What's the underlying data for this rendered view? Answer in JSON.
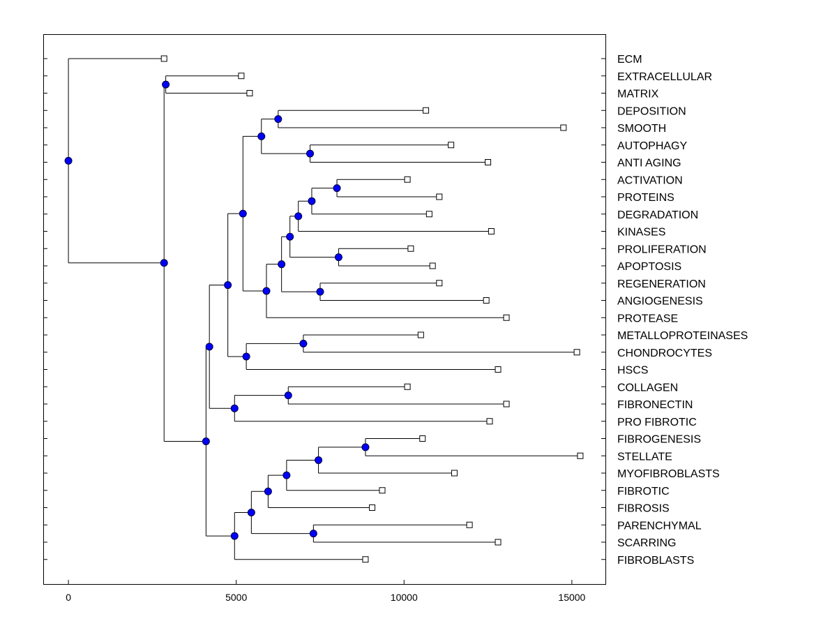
{
  "chart_data": {
    "type": "dendrogram",
    "title": "",
    "xlabel": "",
    "ylabel": "",
    "xlim": [
      -750,
      16000
    ],
    "xticks": [
      0,
      5000,
      10000,
      15000
    ],
    "tick_labels": [
      "0",
      "5000",
      "10000",
      "15000"
    ],
    "colors": {
      "node": "#0000ff",
      "node_stroke": "#000033",
      "line": "#000000",
      "leaf": "#ffffff"
    },
    "leaves": [
      {
        "label": "ECM",
        "x": 2850
      },
      {
        "label": "EXTRACELLULAR",
        "x": 5150
      },
      {
        "label": "MATRIX",
        "x": 5400
      },
      {
        "label": "DEPOSITION",
        "x": 10650
      },
      {
        "label": "SMOOTH",
        "x": 14750
      },
      {
        "label": "AUTOPHAGY",
        "x": 11400
      },
      {
        "label": "ANTI AGING",
        "x": 12500
      },
      {
        "label": "ACTIVATION",
        "x": 10100
      },
      {
        "label": "PROTEINS",
        "x": 11050
      },
      {
        "label": "DEGRADATION",
        "x": 10750
      },
      {
        "label": "KINASES",
        "x": 12600
      },
      {
        "label": "PROLIFERATION",
        "x": 10200
      },
      {
        "label": "APOPTOSIS",
        "x": 10850
      },
      {
        "label": "REGENERATION",
        "x": 11050
      },
      {
        "label": "ANGIOGENESIS",
        "x": 12450
      },
      {
        "label": "PROTEASE",
        "x": 13050
      },
      {
        "label": "METALLOPROTEINASES",
        "x": 10500
      },
      {
        "label": "CHONDROCYTES",
        "x": 15150
      },
      {
        "label": "HSCS",
        "x": 12800
      },
      {
        "label": "COLLAGEN",
        "x": 10100
      },
      {
        "label": "FIBRONECTIN",
        "x": 13050
      },
      {
        "label": "PRO FIBROTIC",
        "x": 12550
      },
      {
        "label": "FIBROGENESIS",
        "x": 10550
      },
      {
        "label": "STELLATE",
        "x": 15250
      },
      {
        "label": "MYOFIBROBLASTS",
        "x": 11500
      },
      {
        "label": "FIBROTIC",
        "x": 9350
      },
      {
        "label": "FIBROSIS",
        "x": 9050
      },
      {
        "label": "PARENCHYMAL",
        "x": 11950
      },
      {
        "label": "SCARRING",
        "x": 12800
      },
      {
        "label": "FIBROBLASTS",
        "x": 8850
      }
    ],
    "merges": [
      {
        "id": "n1",
        "x": 2900,
        "children": [
          1,
          2
        ]
      },
      {
        "id": "n2",
        "x": 6250,
        "children": [
          3,
          4
        ]
      },
      {
        "id": "n3",
        "x": 7200,
        "children": [
          5,
          6
        ]
      },
      {
        "id": "n4",
        "x": 5750,
        "children": [
          "n2",
          "n3"
        ]
      },
      {
        "id": "n5",
        "x": 8000,
        "children": [
          7,
          8
        ]
      },
      {
        "id": "n6",
        "x": 7250,
        "children": [
          "n5",
          9
        ]
      },
      {
        "id": "n7",
        "x": 6850,
        "children": [
          "n6",
          10
        ]
      },
      {
        "id": "n8",
        "x": 8050,
        "children": [
          11,
          12
        ]
      },
      {
        "id": "n9",
        "x": 6600,
        "children": [
          "n7",
          "n8"
        ]
      },
      {
        "id": "n10",
        "x": 7500,
        "children": [
          13,
          14
        ]
      },
      {
        "id": "n11",
        "x": 6350,
        "children": [
          "n9",
          "n10"
        ]
      },
      {
        "id": "n12",
        "x": 5900,
        "children": [
          "n11",
          15
        ]
      },
      {
        "id": "n13",
        "x": 5200,
        "children": [
          "n4",
          "n12"
        ]
      },
      {
        "id": "n14",
        "x": 7000,
        "children": [
          16,
          17
        ]
      },
      {
        "id": "n15",
        "x": 5300,
        "children": [
          "n14",
          18
        ]
      },
      {
        "id": "n16",
        "x": 4750,
        "children": [
          "n13",
          "n15"
        ]
      },
      {
        "id": "n17",
        "x": 6550,
        "children": [
          19,
          20
        ]
      },
      {
        "id": "n18",
        "x": 4950,
        "children": [
          "n17",
          21
        ]
      },
      {
        "id": "n19",
        "x": 4200,
        "children": [
          "n16",
          "n18"
        ]
      },
      {
        "id": "n20",
        "x": 8850,
        "children": [
          22,
          23
        ]
      },
      {
        "id": "n21",
        "x": 7450,
        "children": [
          "n20",
          24
        ]
      },
      {
        "id": "n22",
        "x": 6500,
        "children": [
          "n21",
          25
        ]
      },
      {
        "id": "n23",
        "x": 5950,
        "children": [
          "n22",
          26
        ]
      },
      {
        "id": "n24",
        "x": 7300,
        "children": [
          27,
          28
        ]
      },
      {
        "id": "n25",
        "x": 5450,
        "children": [
          "n23",
          "n24"
        ]
      },
      {
        "id": "n26",
        "x": 4950,
        "children": [
          "n25",
          29
        ]
      },
      {
        "id": "n27",
        "x": 4100,
        "children": [
          "n19",
          "n26"
        ]
      },
      {
        "id": "n28",
        "x": 2850,
        "children": [
          "n1",
          "n27"
        ]
      },
      {
        "id": "n29",
        "x": 0,
        "children": [
          0,
          "n28"
        ]
      }
    ]
  }
}
